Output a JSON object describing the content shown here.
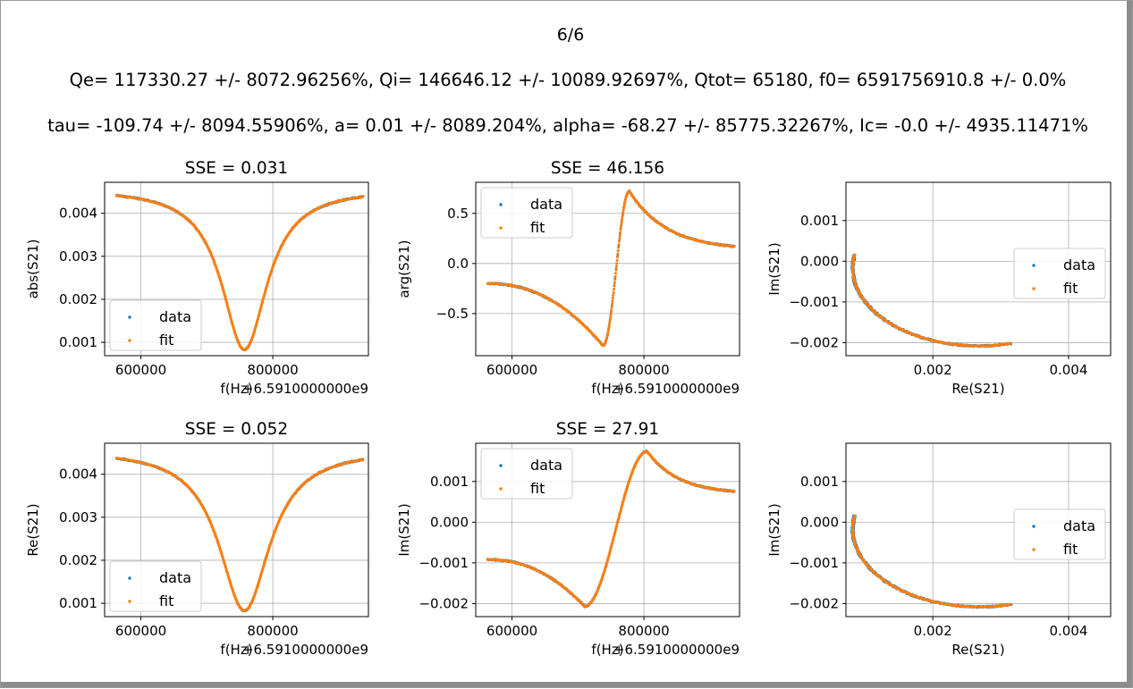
{
  "figure": {
    "title": "6/6",
    "params_line1": "Qe= 117330.27 +/- 8072.96256%,   Qi= 146646.12 +/- 10089.92697%,   Qtot= 65180,   f0= 6591756910.8 +/- 0.0%",
    "params_line2": "tau= -109.74 +/- 8094.55906%,   a= 0.01 +/- 8089.204%,   alpha= -68.27 +/- 85775.32267%,   Ic= -0.0 +/- 4935.11471%",
    "offset_text": "+6.5910000000e9"
  },
  "colors": {
    "data": "#1f77b4",
    "fit": "#ff7f0e",
    "grid": "#b0b0b0"
  },
  "chart_data": [
    {
      "id": "abs",
      "type": "scatter",
      "curve": "absdip",
      "title": "SSE = 0.031",
      "xlabel": "f(Hz)",
      "ylabel": "abs(S21)",
      "x_offset": "+6.5910000000e9",
      "xlim": [
        545000,
        945000
      ],
      "ylim": [
        0.00069,
        0.00472
      ],
      "xticks": [
        600000,
        800000
      ],
      "xtick_labels": [
        "600000",
        "800000"
      ],
      "yticks": [
        0.001,
        0.002,
        0.003,
        0.004
      ],
      "ytick_labels": [
        "0.001",
        "0.002",
        "0.003",
        "0.004"
      ],
      "legend": {
        "position": "lower-left",
        "entries": [
          "data",
          "fit"
        ]
      },
      "grid": true,
      "x_range": [
        563000,
        937000
      ],
      "baseline": 0.00458,
      "depth": 0.00375,
      "f0": 757000,
      "width": 42000
    },
    {
      "id": "arg",
      "type": "scatter",
      "curve": "phase",
      "title": "SSE = 46.156",
      "xlabel": "f(Hz)",
      "ylabel": "arg(S21)",
      "x_offset": "+6.5910000000e9",
      "xlim": [
        545000,
        945000
      ],
      "ylim": [
        -0.92,
        0.81
      ],
      "xticks": [
        600000,
        800000
      ],
      "xtick_labels": [
        "600000",
        "800000"
      ],
      "yticks": [
        -0.5,
        0.0,
        0.5
      ],
      "ytick_labels": [
        "−0.5",
        "0.0",
        "0.5"
      ],
      "legend": {
        "position": "upper-left",
        "entries": [
          "data",
          "fit"
        ]
      },
      "grid": true,
      "x_range": [
        563000,
        937000
      ],
      "start": -0.2,
      "min": -0.82,
      "min_x": 738000,
      "max": 0.72,
      "max_x": 778000,
      "end": 0.17
    },
    {
      "id": "iq1",
      "type": "scatter",
      "curve": "circle",
      "title": "",
      "xlabel": "Re(S21)",
      "ylabel": "Im(S21)",
      "xlim": [
        0.00072,
        0.00462
      ],
      "ylim": [
        -0.00232,
        0.00194
      ],
      "xticks": [
        0.002,
        0.004
      ],
      "xtick_labels": [
        "0.002",
        "0.004"
      ],
      "yticks": [
        -0.002,
        -0.001,
        0.0,
        0.001
      ],
      "ytick_labels": [
        "−0.002",
        "−0.001",
        "0.000",
        "0.001"
      ],
      "legend": {
        "position": "center-right",
        "entries": [
          "data",
          "fit"
        ]
      },
      "grid": true,
      "center": [
        0.00268,
        -0.00017
      ],
      "radii": [
        0.00186,
        0.00191
      ],
      "start_angle": 0.945,
      "end_angle": -0.42
    },
    {
      "id": "re",
      "type": "scatter",
      "curve": "absdip",
      "title": "SSE = 0.052",
      "xlabel": "f(Hz)",
      "ylabel": "Re(S21)",
      "x_offset": "+6.5910000000e9",
      "xlim": [
        545000,
        945000
      ],
      "ylim": [
        0.00069,
        0.00472
      ],
      "xticks": [
        600000,
        800000
      ],
      "xtick_labels": [
        "600000",
        "800000"
      ],
      "yticks": [
        0.001,
        0.002,
        0.003,
        0.004
      ],
      "ytick_labels": [
        "0.001",
        "0.002",
        "0.003",
        "0.004"
      ],
      "legend": {
        "position": "lower-left",
        "entries": [
          "data",
          "fit"
        ]
      },
      "grid": true,
      "x_range": [
        563000,
        937000
      ],
      "baseline": 0.00458,
      "depth": 0.00375,
      "f0": 757000,
      "width": 47000
    },
    {
      "id": "im",
      "type": "scatter",
      "curve": "imag",
      "title": "SSE = 27.91",
      "xlabel": "f(Hz)",
      "ylabel": "Im(S21)",
      "x_offset": "+6.5910000000e9",
      "xlim": [
        545000,
        945000
      ],
      "ylim": [
        -0.00232,
        0.00194
      ],
      "xticks": [
        600000,
        800000
      ],
      "xtick_labels": [
        "600000",
        "800000"
      ],
      "yticks": [
        -0.002,
        -0.001,
        0.0,
        0.001
      ],
      "ytick_labels": [
        "−0.002",
        "−0.001",
        "0.000",
        "0.001"
      ],
      "legend": {
        "position": "upper-left",
        "entries": [
          "data",
          "fit"
        ]
      },
      "grid": true,
      "x_range": [
        563000,
        937000
      ],
      "start": -0.00092,
      "min": -0.00207,
      "min_x": 710000,
      "max": 0.00174,
      "max_x": 805000,
      "end": 0.00076
    },
    {
      "id": "iq2",
      "type": "scatter",
      "curve": "circle",
      "title": "",
      "xlabel": "Re(S21)",
      "ylabel": "Im(S21)",
      "xlim": [
        0.00072,
        0.00462
      ],
      "ylim": [
        -0.00232,
        0.00194
      ],
      "xticks": [
        0.002,
        0.004
      ],
      "xtick_labels": [
        "0.002",
        "0.004"
      ],
      "yticks": [
        -0.002,
        -0.001,
        0.0,
        0.001
      ],
      "ytick_labels": [
        "−0.002",
        "−0.001",
        "0.000",
        "0.001"
      ],
      "legend": {
        "position": "center-right",
        "entries": [
          "data",
          "fit"
        ]
      },
      "grid": true,
      "center": [
        0.00268,
        -0.00017
      ],
      "radii": [
        0.00186,
        0.00191
      ],
      "start_angle": 0.945,
      "end_angle": -0.42
    }
  ]
}
